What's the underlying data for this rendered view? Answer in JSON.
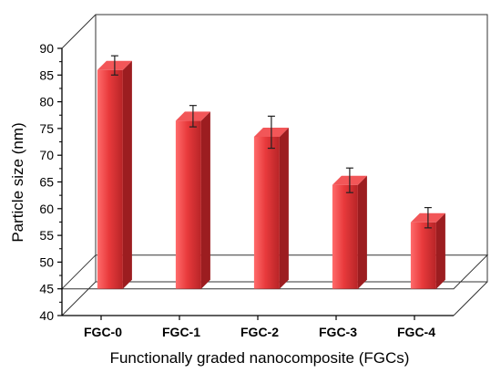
{
  "colors": {
    "bar_front": "#e83a3c",
    "bar_light": "#ff6b6b",
    "bar_dark": "#b72427",
    "bar_side": "#9c1d20",
    "bar_top": "#f25658",
    "frame": "#333333",
    "error_bar": "#222222"
  },
  "chart_data": {
    "type": "bar",
    "style": "3d",
    "categories": [
      "FGC-0",
      "FGC-1",
      "FGC-2",
      "FGC-3",
      "FGC-4"
    ],
    "values": [
      88,
      78.5,
      75.5,
      66.5,
      59.5
    ],
    "errors": [
      1.8,
      2.0,
      3.0,
      2.3,
      1.9
    ],
    "xlabel": "Functionally graded nanocomposite (FGCs)",
    "ylabel": "Particle size (nm)",
    "ylim": [
      40,
      90
    ],
    "yticks": [
      40,
      45,
      50,
      55,
      60,
      65,
      70,
      75,
      80,
      85,
      90
    ],
    "grid": false,
    "legend": "none"
  }
}
